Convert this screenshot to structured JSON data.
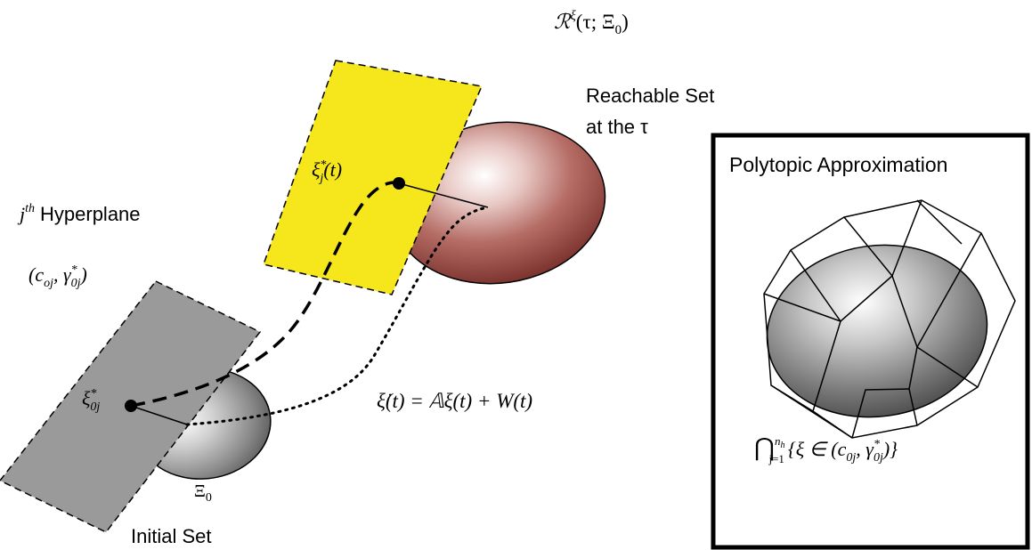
{
  "labels": {
    "reachable_set_math": "ℛ",
    "reachable_set_math_sup": "ξ",
    "reachable_set_math_args": "(τ; Ξ",
    "reachable_set_math_sub": "0",
    "reachable_set_math_close": ")",
    "reachable_set_line1": "Reachable Set",
    "reachable_set_line2": "at the τ",
    "hyperplane_j": "j",
    "hyperplane_j_sup": "th",
    "hyperplane_word": "Hyperplane",
    "hyperplane_params": "(c",
    "hyperplane_params_sub1": "oj",
    "hyperplane_params_mid": ", γ",
    "hyperplane_params_sup": "*",
    "hyperplane_params_sub2": "0j",
    "hyperplane_params_close": ")",
    "xi_j_star": "ξ",
    "xi_j_star_sup": "*",
    "xi_j_star_sub": "j",
    "xi_j_star_arg": "(t)",
    "xi_0j_star": "ξ",
    "xi_0j_star_sup": "*",
    "xi_0j_star_sub": "0j",
    "dynamics": "ξ̇(t) = 𝔸ξ(t)  +  W(t)",
    "initial_set_symbol": "Ξ",
    "initial_set_symbol_sub": "0",
    "initial_set": "Initial Set",
    "polytopic_title": "Polytopic Approximation",
    "intersection_sym": "⋂",
    "intersection_sup": "n",
    "intersection_sup_sub": "h",
    "intersection_sub": "j=1",
    "intersection_body": "{ξ ∈ (c",
    "intersection_body_sub1": "0j",
    "intersection_body_mid": ", γ",
    "intersection_body_sup": "*",
    "intersection_body_sub2": "0j",
    "intersection_body_close": ")}"
  },
  "colors": {
    "yellow_plane": "#f5e71c",
    "gray_plane": "#9a9a9a",
    "red_dark": "#7a2a24",
    "red_light": "#ffffff",
    "gray_dark": "#3a3a3a",
    "gray_light": "#ffffff"
  }
}
